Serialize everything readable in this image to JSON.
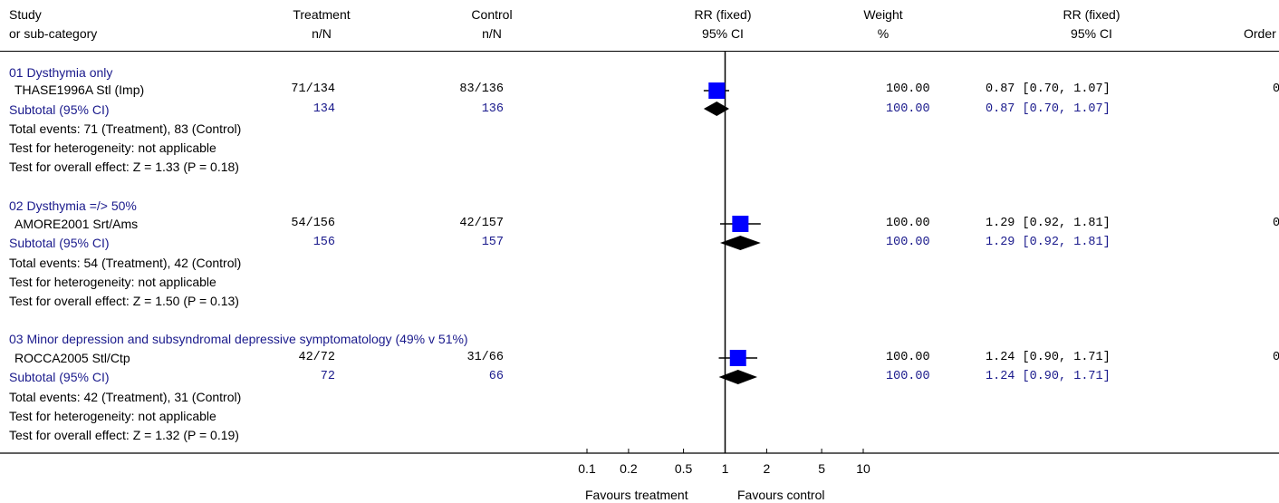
{
  "header": {
    "col_study": [
      "Study",
      "or sub-category"
    ],
    "col_treatment": [
      "Treatment",
      "n/N"
    ],
    "col_control": [
      "Control",
      "n/N"
    ],
    "col_rr_plot": [
      "RR (fixed)",
      "95% CI"
    ],
    "col_weight": [
      "Weight",
      "%"
    ],
    "col_rr_text": [
      "RR (fixed)",
      "95% CI"
    ],
    "col_order": [
      "Order"
    ]
  },
  "groups": [
    {
      "title": "01 Dysthymia only",
      "study": {
        "name": "THASE1996A Stl (Imp)",
        "treatment": "71/134",
        "control": "83/136",
        "weight": "100.00",
        "rr_text": "0.87 [0.70, 1.07]",
        "order": "0"
      },
      "subtotal": {
        "label": "Subtotal (95% CI)",
        "treatment": "134",
        "control": "136",
        "weight": "100.00",
        "rr_text": "0.87 [0.70, 1.07]"
      },
      "notes": [
        "Total events: 71 (Treatment), 83 (Control)",
        "Test for heterogeneity: not applicable",
        "Test for overall effect: Z = 1.33 (P = 0.18)"
      ]
    },
    {
      "title": "02 Dysthymia =/> 50%",
      "study": {
        "name": "AMORE2001 Srt/Ams",
        "treatment": "54/156",
        "control": "42/157",
        "weight": "100.00",
        "rr_text": "1.29 [0.92, 1.81]",
        "order": "0"
      },
      "subtotal": {
        "label": "Subtotal (95% CI)",
        "treatment": "156",
        "control": "157",
        "weight": "100.00",
        "rr_text": "1.29 [0.92, 1.81]"
      },
      "notes": [
        "Total events: 54 (Treatment), 42 (Control)",
        "Test for heterogeneity: not applicable",
        "Test for overall effect: Z = 1.50 (P = 0.13)"
      ]
    },
    {
      "title": "03 Minor depression and subsyndromal depressive symptomatology (49% v 51%)",
      "study": {
        "name": "ROCCA2005 Stl/Ctp",
        "treatment": "42/72",
        "control": "31/66",
        "weight": "100.00",
        "rr_text": "1.24 [0.90, 1.71]",
        "order": "0"
      },
      "subtotal": {
        "label": "Subtotal (95% CI)",
        "treatment": "72",
        "control": "66",
        "weight": "100.00",
        "rr_text": "1.24 [0.90, 1.71]"
      },
      "notes": [
        "Total events: 42 (Treatment), 31 (Control)",
        "Test for heterogeneity: not applicable",
        "Test for overall effect: Z = 1.32 (P = 0.19)"
      ]
    }
  ],
  "footer": {
    "favours_left": "Favours treatment",
    "favours_right": "Favours control"
  },
  "colors": {
    "study_marker": "#0000ff",
    "subtotal_text": "#1a1a8c",
    "diamond": "#000000"
  },
  "chart_data": {
    "type": "forest",
    "scale": "log",
    "xlim": [
      0.1,
      10
    ],
    "null_line": 1,
    "ticks": [
      0.1,
      0.2,
      0.5,
      1,
      2,
      5,
      10
    ],
    "tick_labels": [
      "0.1",
      "0.2",
      "0.5",
      "1",
      "2",
      "5",
      "10"
    ],
    "studies": [
      {
        "name": "THASE1996A Stl (Imp)",
        "rr": 0.87,
        "lo": 0.7,
        "hi": 1.07,
        "weight": 100
      },
      {
        "name": "AMORE2001 Srt/Ams",
        "rr": 1.29,
        "lo": 0.92,
        "hi": 1.81,
        "weight": 100
      },
      {
        "name": "ROCCA2005 Stl/Ctp",
        "rr": 1.24,
        "lo": 0.9,
        "hi": 1.71,
        "weight": 100
      }
    ],
    "subtotals": [
      {
        "label": "Subtotal (95% CI)",
        "rr": 0.87,
        "lo": 0.7,
        "hi": 1.07
      },
      {
        "label": "Subtotal (95% CI)",
        "rr": 1.29,
        "lo": 0.92,
        "hi": 1.81
      },
      {
        "label": "Subtotal (95% CI)",
        "rr": 1.24,
        "lo": 0.9,
        "hi": 1.71
      }
    ]
  }
}
